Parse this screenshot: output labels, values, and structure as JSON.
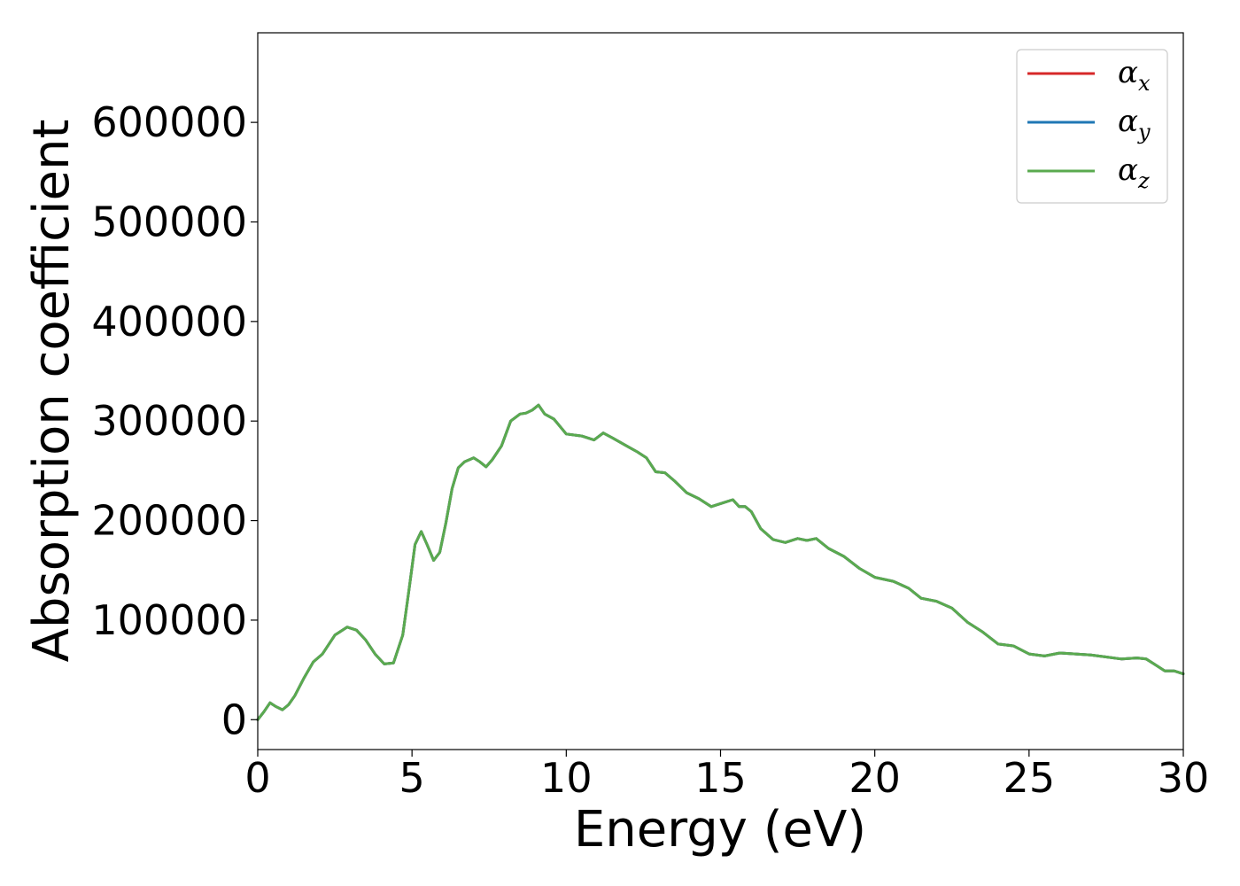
{
  "chart_data": {
    "type": "line",
    "xlabel": "Energy (eV)",
    "ylabel": "Absorption coefficient",
    "xlim": [
      0,
      30
    ],
    "ylim": [
      -30000,
      690000
    ],
    "xticks": [
      "0",
      "5",
      "10",
      "15",
      "20",
      "25",
      "30"
    ],
    "xtick_values": [
      0,
      5,
      10,
      15,
      20,
      25,
      30
    ],
    "yticks": [
      "0",
      "100000",
      "200000",
      "300000",
      "400000",
      "500000",
      "600000"
    ],
    "ytick_values": [
      0,
      100000,
      200000,
      300000,
      400000,
      500000,
      600000
    ],
    "grid": false,
    "legend_placement": "top-right",
    "x": [
      0,
      0.2,
      0.4,
      0.6,
      0.8,
      1.0,
      1.2,
      1.5,
      1.8,
      2.1,
      2.5,
      2.9,
      3.2,
      3.5,
      3.8,
      4.1,
      4.4,
      4.7,
      4.9,
      5.1,
      5.3,
      5.5,
      5.7,
      5.9,
      6.1,
      6.3,
      6.5,
      6.7,
      7.0,
      7.2,
      7.4,
      7.6,
      7.9,
      8.2,
      8.5,
      8.7,
      8.9,
      9.1,
      9.3,
      9.6,
      10.0,
      10.5,
      10.9,
      11.2,
      11.5,
      11.9,
      12.3,
      12.6,
      12.9,
      13.2,
      13.5,
      13.9,
      14.3,
      14.7,
      15.1,
      15.4,
      15.6,
      15.8,
      16.0,
      16.3,
      16.7,
      17.1,
      17.5,
      17.8,
      18.1,
      18.5,
      19.0,
      19.5,
      20.0,
      20.6,
      21.1,
      21.5,
      22.0,
      22.5,
      23.0,
      23.5,
      24.0,
      24.5,
      25.0,
      25.5,
      26.0,
      26.5,
      27.0,
      27.5,
      28.0,
      28.5,
      28.8,
      29.1,
      29.4,
      29.7,
      30.0
    ],
    "series": [
      {
        "name": "αx",
        "color": "#d62728",
        "values": [
          0,
          8000,
          17000,
          13000,
          10000,
          15000,
          24000,
          42000,
          58000,
          66000,
          85000,
          93000,
          90000,
          80000,
          66000,
          56000,
          57000,
          85000,
          130000,
          176000,
          189000,
          175000,
          160000,
          168000,
          198000,
          232000,
          253000,
          259000,
          263000,
          259000,
          254000,
          261000,
          275000,
          300000,
          307000,
          308000,
          311000,
          316000,
          307000,
          302000,
          287000,
          285000,
          281000,
          288000,
          283000,
          276000,
          269000,
          263000,
          249000,
          248000,
          240000,
          228000,
          222000,
          214000,
          218000,
          221000,
          214000,
          214000,
          209000,
          192000,
          181000,
          178000,
          182000,
          180000,
          182000,
          172000,
          164000,
          152000,
          143000,
          139000,
          132000,
          122000,
          119000,
          112000,
          98000,
          88000,
          76000,
          74000,
          66000,
          64000,
          67000,
          66000,
          65000,
          63000,
          61000,
          62000,
          61000,
          55000,
          49000,
          49000,
          46000
        ]
      },
      {
        "name": "αy",
        "color": "#1f77b4",
        "values": [
          0,
          8000,
          17000,
          13000,
          10000,
          15000,
          24000,
          42000,
          58000,
          66000,
          85000,
          93000,
          90000,
          80000,
          66000,
          56000,
          57000,
          85000,
          130000,
          176000,
          189000,
          175000,
          160000,
          168000,
          198000,
          232000,
          253000,
          259000,
          263000,
          259000,
          254000,
          261000,
          275000,
          300000,
          307000,
          308000,
          311000,
          316000,
          307000,
          302000,
          287000,
          285000,
          281000,
          288000,
          283000,
          276000,
          269000,
          263000,
          249000,
          248000,
          240000,
          228000,
          222000,
          214000,
          218000,
          221000,
          214000,
          214000,
          209000,
          192000,
          181000,
          178000,
          182000,
          180000,
          182000,
          172000,
          164000,
          152000,
          143000,
          139000,
          132000,
          122000,
          119000,
          112000,
          98000,
          88000,
          76000,
          74000,
          66000,
          64000,
          67000,
          66000,
          65000,
          63000,
          61000,
          62000,
          61000,
          55000,
          49000,
          49000,
          46000
        ]
      },
      {
        "name": "αz",
        "color": "#5aaa4f",
        "values": [
          0,
          8000,
          17000,
          13000,
          10000,
          15000,
          24000,
          42000,
          58000,
          66000,
          85000,
          93000,
          90000,
          80000,
          66000,
          56000,
          57000,
          85000,
          130000,
          176000,
          189000,
          175000,
          160000,
          168000,
          198000,
          232000,
          253000,
          259000,
          263000,
          259000,
          254000,
          261000,
          275000,
          300000,
          307000,
          308000,
          311000,
          316000,
          307000,
          302000,
          287000,
          285000,
          281000,
          288000,
          283000,
          276000,
          269000,
          263000,
          249000,
          248000,
          240000,
          228000,
          222000,
          214000,
          218000,
          221000,
          214000,
          214000,
          209000,
          192000,
          181000,
          178000,
          182000,
          180000,
          182000,
          172000,
          164000,
          152000,
          143000,
          139000,
          132000,
          122000,
          119000,
          112000,
          98000,
          88000,
          76000,
          74000,
          66000,
          64000,
          67000,
          66000,
          65000,
          63000,
          61000,
          62000,
          61000,
          55000,
          49000,
          49000,
          46000
        ]
      }
    ],
    "legend": [
      {
        "base": "α",
        "sub": "x",
        "color": "#d62728"
      },
      {
        "base": "α",
        "sub": "y",
        "color": "#1f77b4"
      },
      {
        "base": "α",
        "sub": "z",
        "color": "#5aaa4f"
      }
    ]
  }
}
